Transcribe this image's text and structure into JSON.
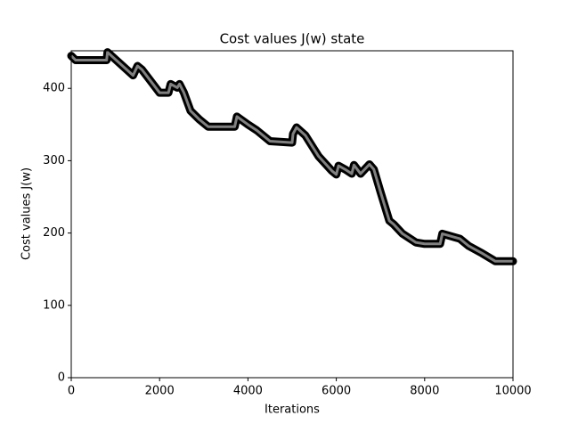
{
  "chart_data": {
    "type": "line",
    "title": "Cost values J(w) state",
    "x_label": "Iterations",
    "y_label": "Cost values J(w)",
    "x": [
      0,
      100,
      800,
      820,
      1400,
      1500,
      1600,
      2000,
      2200,
      2250,
      2400,
      2450,
      2550,
      2700,
      2900,
      3100,
      3700,
      3750,
      4000,
      4200,
      4500,
      5000,
      5020,
      5100,
      5300,
      5600,
      5900,
      6000,
      6050,
      6200,
      6350,
      6400,
      6550,
      6750,
      6850,
      7000,
      7200,
      7300,
      7500,
      7800,
      8000,
      8350,
      8400,
      8800,
      9000,
      9300,
      9600,
      10000
    ],
    "series": [
      {
        "color": "#808080",
        "marker_color": "#000000",
        "values": [
          445,
          439,
          439,
          450,
          418,
          431,
          426,
          394,
          394,
          406,
          401,
          406,
          394,
          369,
          357,
          347,
          347,
          361,
          350,
          342,
          327,
          325,
          337,
          346,
          335,
          306,
          286,
          281,
          293,
          288,
          282,
          294,
          282,
          295,
          288,
          257,
          217,
          212,
          199,
          187,
          185,
          185,
          199,
          192,
          182,
          172,
          161,
          161
        ]
      }
    ],
    "xlim": [
      0,
      10000
    ],
    "ylim": [
      0,
      452
    ],
    "xticks": [
      0,
      2000,
      4000,
      6000,
      8000,
      10000
    ],
    "yticks": [
      0,
      100,
      200,
      300,
      400
    ],
    "grid": false
  }
}
